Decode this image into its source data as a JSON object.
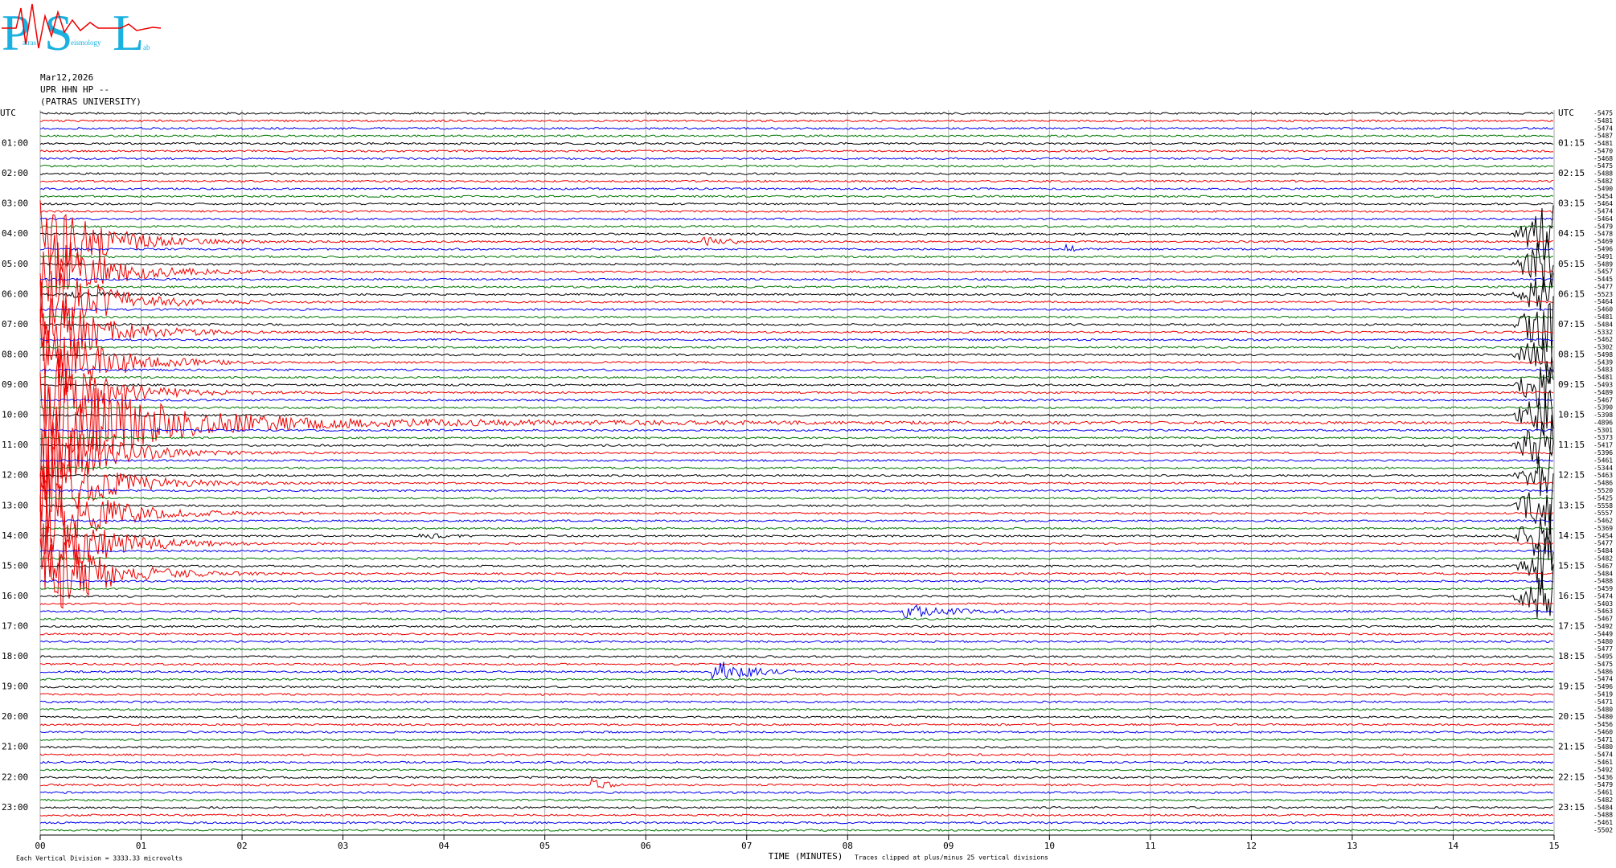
{
  "logo": {
    "p": "P",
    "patras": "atras",
    "s": "S",
    "seismology": "eismology",
    "l": "L",
    "lab": "ab"
  },
  "header": {
    "date": "Mar12,2026",
    "station": "UPR HHN HP --",
    "institution": "(PATRAS UNIVERSITY)"
  },
  "left_labels": [
    "UTC",
    "01:00",
    "02:00",
    "03:00",
    "04:00",
    "05:00",
    "06:00",
    "07:00",
    "08:00",
    "09:00",
    "10:00",
    "11:00",
    "12:00",
    "13:00",
    "14:00",
    "15:00",
    "16:00",
    "17:00",
    "18:00",
    "19:00",
    "20:00",
    "21:00",
    "22:00",
    "23:00"
  ],
  "right_labels": [
    "UTC",
    "01:15",
    "02:15",
    "03:15",
    "04:15",
    "05:15",
    "06:15",
    "07:15",
    "08:15",
    "09:15",
    "10:15",
    "11:15",
    "12:15",
    "13:15",
    "14:15",
    "15:15",
    "16:15",
    "17:15",
    "18:15",
    "19:15",
    "20:15",
    "21:15",
    "22:15",
    "23:15"
  ],
  "offsets": [
    "-5475",
    "-5481",
    "-5474",
    "-5487",
    "-5481",
    "-5470",
    "-5468",
    "-5475",
    "-5488",
    "-5482",
    "-5490",
    "-5454",
    "-5464",
    "-5474",
    "-5464",
    "-5479",
    "-5478",
    "-5469",
    "-5496",
    "-5491",
    "-5489",
    "-5457",
    "-5445",
    "-5477",
    "-5523",
    "-5464",
    "-5460",
    "-5481",
    "-5484",
    "-5332",
    "-5462",
    "-5302",
    "-5498",
    "-5439",
    "-5483",
    "-5481",
    "-5493",
    "-5489",
    "-5467",
    "-5390",
    "-5398",
    "-4896",
    "-5301",
    "-5373",
    "-5417",
    "-5396",
    "-5461",
    "-5344",
    "-5463",
    "-5486",
    "-5520",
    "-5425",
    "-5558",
    "-5557",
    "-5462",
    "-5369",
    "-5454",
    "-5477",
    "-5484",
    "-5482",
    "-5467",
    "-5484",
    "-5488",
    "-5459",
    "-5474",
    "-5403",
    "-5463",
    "-5467",
    "-5492",
    "-5449",
    "-5480",
    "-5477",
    "-5495",
    "-5475",
    "-5486",
    "-5474",
    "-5496",
    "-5419",
    "-5471",
    "-5480",
    "-5480",
    "-5456",
    "-5460",
    "-5471",
    "-5480",
    "-5474",
    "-5461",
    "-5492",
    "-5436",
    "-5479",
    "-5461",
    "-5482",
    "-5484",
    "-5488",
    "-5461",
    "-5502"
  ],
  "x_ticks": [
    "00",
    "01",
    "02",
    "03",
    "04",
    "05",
    "06",
    "07",
    "08",
    "09",
    "10",
    "11",
    "12",
    "13",
    "14",
    "15"
  ],
  "footer": {
    "scale_note": "Each Vertical Division = 3333.33 microvolts",
    "axis_title": "TIME (MINUTES)",
    "clip_note": "Traces clipped at plus/minus 25 vertical divisions"
  }
}
